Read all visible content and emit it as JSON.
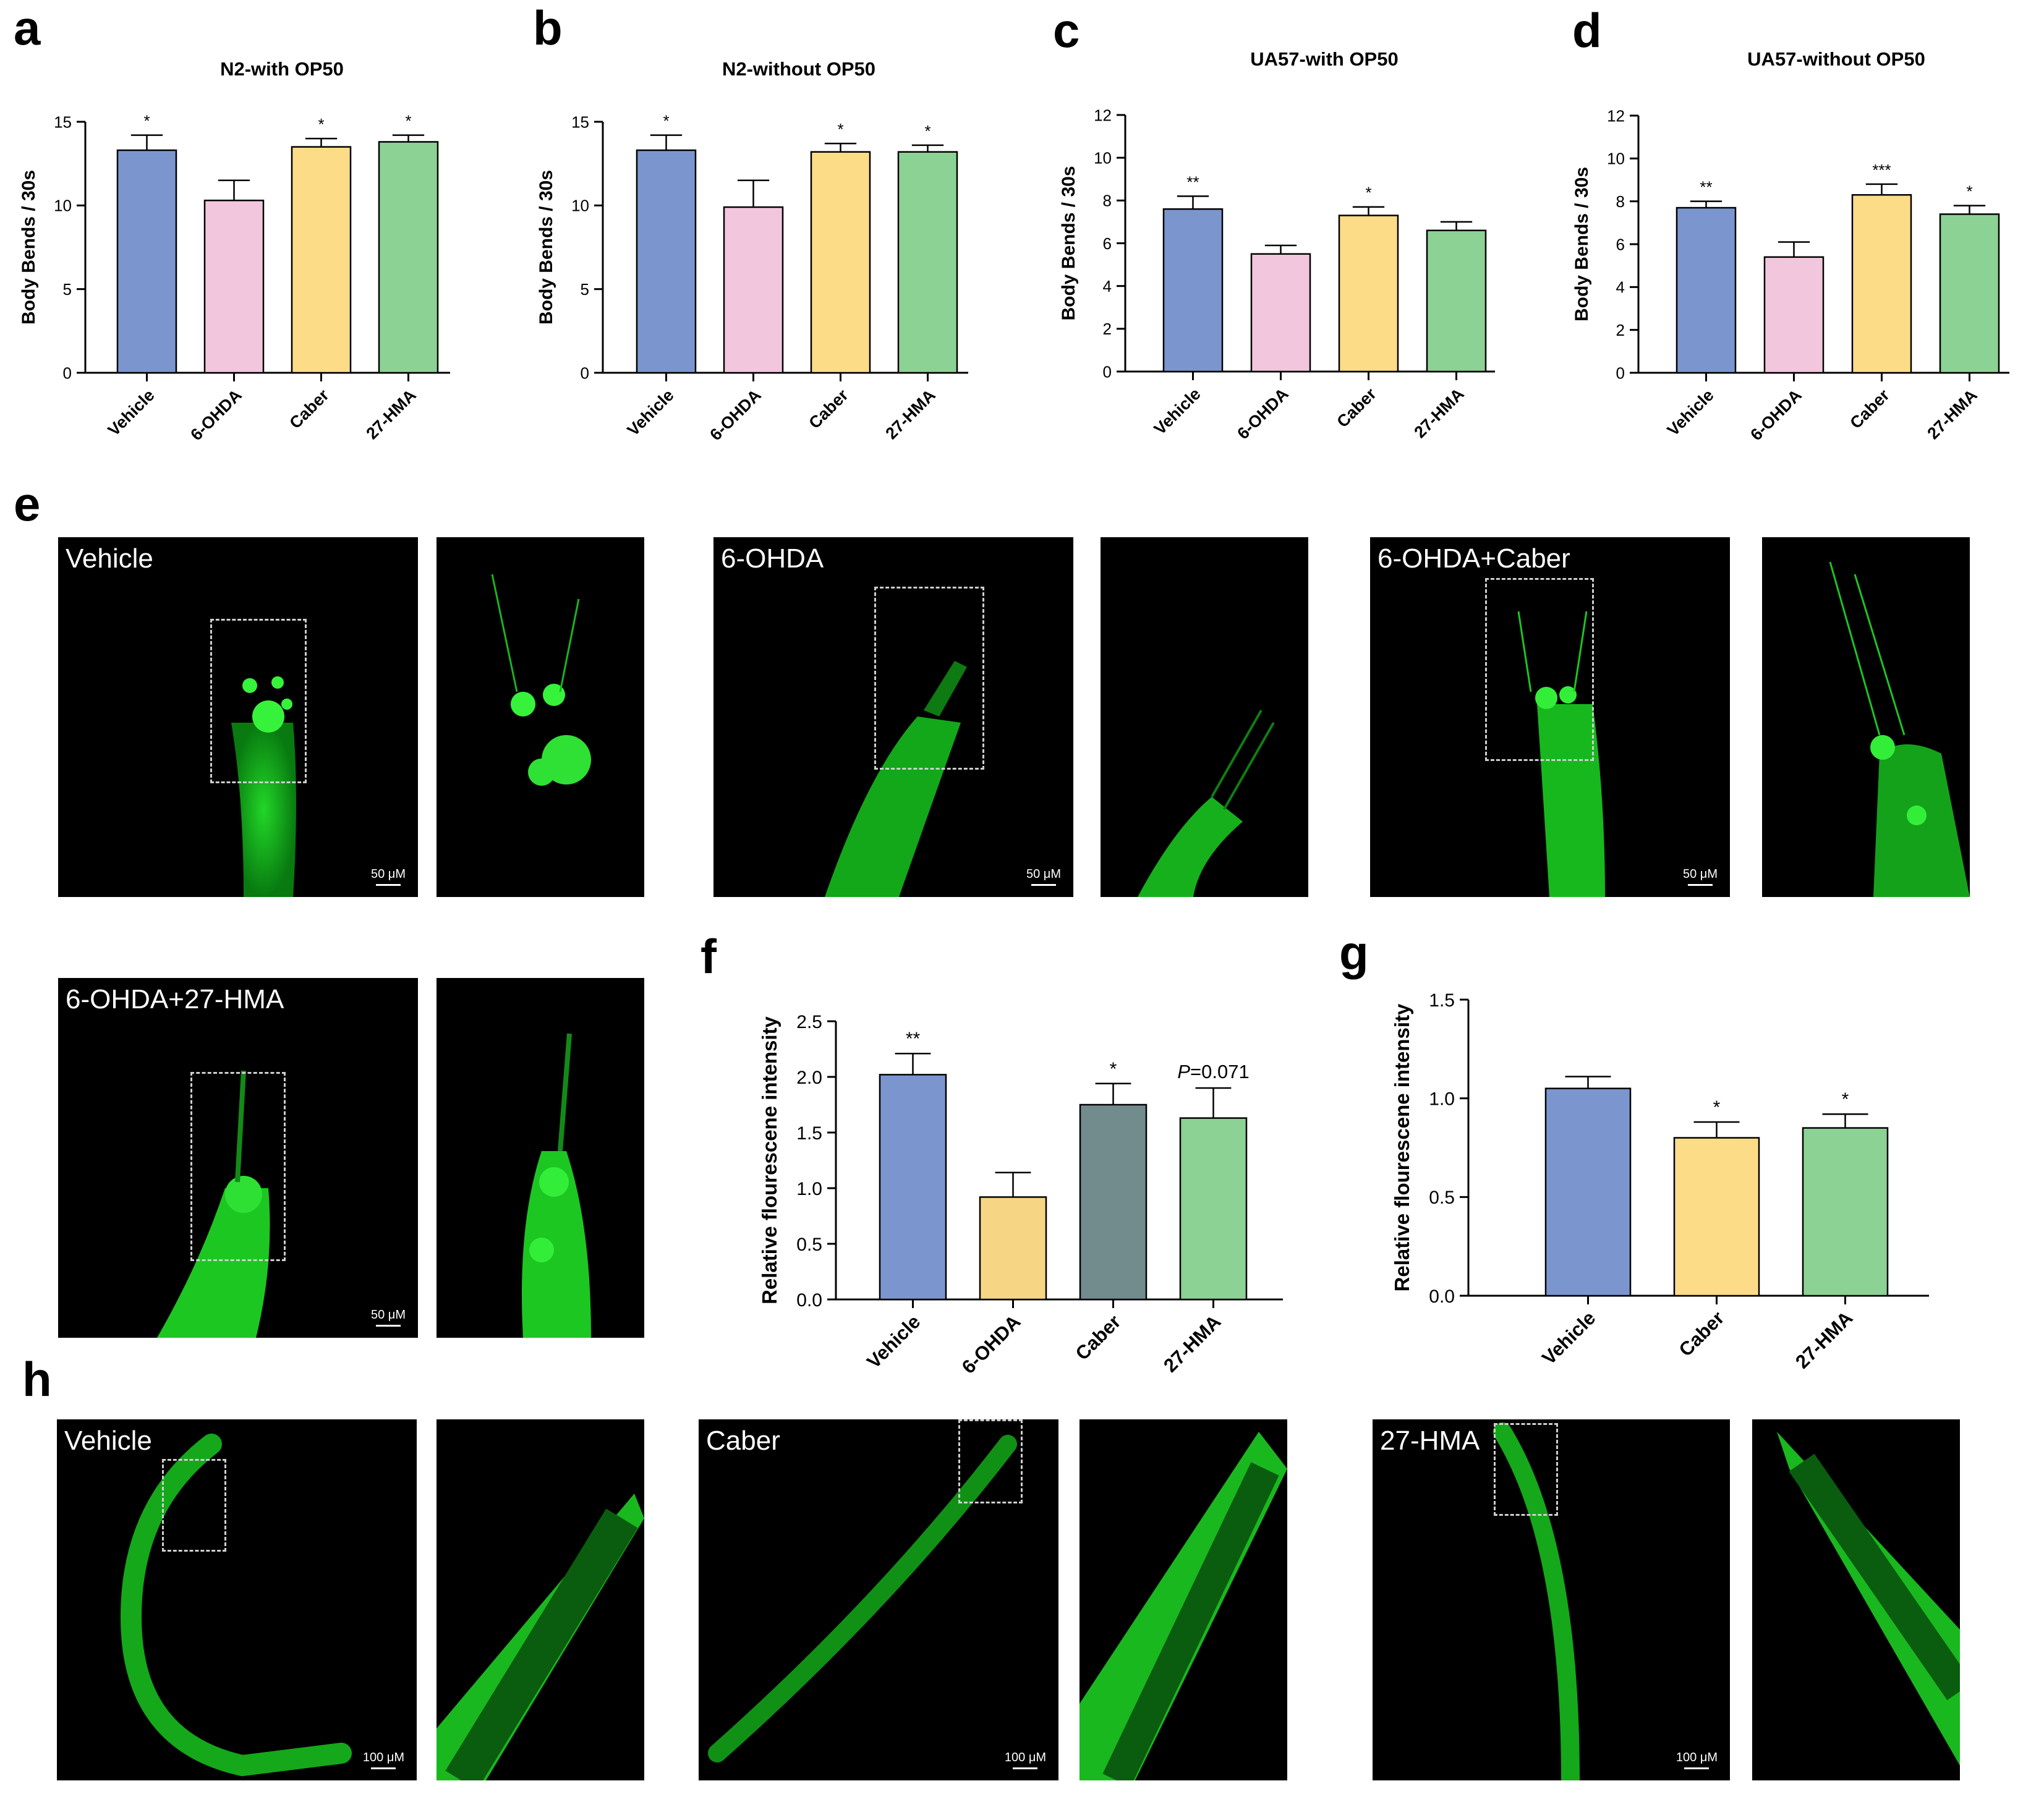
{
  "panels": {
    "a": "a",
    "b": "b",
    "c": "c",
    "d": "d",
    "e": "e",
    "f": "f",
    "g": "g",
    "h": "h"
  },
  "colors": {
    "vehicle": "#7b96cf",
    "ohda": "#f2c6dd",
    "caber": "#fddc87",
    "hma": "#8bd294",
    "caber_f": "#f6d685",
    "caber_slate": "#728b8d",
    "green": "#21c526"
  },
  "chart_data": [
    {
      "id": "a",
      "type": "bar",
      "title": "N2-with OP50",
      "ylabel": "Body Bends / 30s",
      "categories": [
        "Vehicle",
        "6-OHDA",
        "Caber",
        "27-HMA"
      ],
      "values": [
        13.3,
        10.3,
        13.5,
        13.8
      ],
      "errors": [
        0.9,
        1.2,
        0.5,
        0.4
      ],
      "annotations": [
        "*",
        "",
        "*",
        "*"
      ],
      "ylim": [
        0,
        15
      ],
      "yticks": [
        "0",
        "5",
        "10",
        "15"
      ],
      "ytick_values": [
        0,
        5,
        10,
        15
      ],
      "colors": [
        "vehicle",
        "ohda",
        "caber",
        "hma"
      ]
    },
    {
      "id": "b",
      "type": "bar",
      "title": "N2-without OP50",
      "ylabel": "Body Bends / 30s",
      "categories": [
        "Vehicle",
        "6-OHDA",
        "Caber",
        "27-HMA"
      ],
      "values": [
        13.3,
        9.9,
        13.2,
        13.2
      ],
      "errors": [
        0.9,
        1.6,
        0.5,
        0.4
      ],
      "annotations": [
        "*",
        "",
        "*",
        "*"
      ],
      "ylim": [
        0,
        15
      ],
      "yticks": [
        "0",
        "5",
        "10",
        "15"
      ],
      "ytick_values": [
        0,
        5,
        10,
        15
      ],
      "colors": [
        "vehicle",
        "ohda",
        "caber",
        "hma"
      ]
    },
    {
      "id": "c",
      "type": "bar",
      "title": "UA57-with OP50",
      "ylabel": "Body Bends / 30s",
      "categories": [
        "Vehicle",
        "6-OHDA",
        "Caber",
        "27-HMA"
      ],
      "values": [
        7.6,
        5.5,
        7.3,
        6.6
      ],
      "errors": [
        0.6,
        0.4,
        0.4,
        0.4
      ],
      "annotations": [
        "**",
        "",
        "*",
        ""
      ],
      "ylim": [
        0,
        12
      ],
      "yticks": [
        "0",
        "2",
        "4",
        "6",
        "8",
        "10",
        "12"
      ],
      "ytick_values": [
        0,
        2,
        4,
        6,
        8,
        10,
        12
      ],
      "colors": [
        "vehicle",
        "ohda",
        "caber",
        "hma"
      ]
    },
    {
      "id": "d",
      "type": "bar",
      "title": "UA57-without OP50",
      "ylabel": "Body Bends / 30s",
      "categories": [
        "Vehicle",
        "6-OHDA",
        "Caber",
        "27-HMA"
      ],
      "values": [
        7.7,
        5.4,
        8.3,
        7.4
      ],
      "errors": [
        0.3,
        0.7,
        0.5,
        0.4
      ],
      "annotations": [
        "**",
        "",
        "***",
        "*"
      ],
      "ylim": [
        0,
        12
      ],
      "yticks": [
        "0",
        "2",
        "4",
        "6",
        "8",
        "10",
        "12"
      ],
      "ytick_values": [
        0,
        2,
        4,
        6,
        8,
        10,
        12
      ],
      "colors": [
        "vehicle",
        "ohda",
        "caber",
        "hma"
      ]
    },
    {
      "id": "f",
      "type": "bar",
      "title": "",
      "ylabel": "Relative flourescene intensity",
      "categories": [
        "Vehicle",
        "6-OHDA",
        "Caber",
        "27-HMA"
      ],
      "values": [
        2.02,
        0.92,
        1.75,
        1.63
      ],
      "errors": [
        0.19,
        0.22,
        0.19,
        0.27
      ],
      "annotations": [
        "**",
        "",
        "*",
        ""
      ],
      "pvalue_note": {
        "prefix": "P",
        "text": "=0.071"
      },
      "ylim": [
        0,
        2.5
      ],
      "yticks": [
        "0.0",
        "0.5",
        "1.0",
        "1.5",
        "2.0",
        "2.5"
      ],
      "ytick_values": [
        0,
        0.5,
        1,
        1.5,
        2,
        2.5
      ],
      "colors": [
        "vehicle",
        "caber_f",
        "caber_slate",
        "hma"
      ]
    },
    {
      "id": "g",
      "type": "bar",
      "title": "",
      "ylabel": "Relative flourescene intensity",
      "categories": [
        "Vehicle",
        "Caber",
        "27-HMA"
      ],
      "values": [
        1.05,
        0.8,
        0.85
      ],
      "errors": [
        0.06,
        0.08,
        0.07
      ],
      "annotations": [
        "",
        "*",
        "*"
      ],
      "ylim": [
        0,
        1.5
      ],
      "yticks": [
        "0.0",
        "0.5",
        "1.0",
        "1.5"
      ],
      "ytick_values": [
        0,
        0.5,
        1,
        1.5
      ],
      "colors": [
        "vehicle",
        "caber",
        "hma"
      ]
    }
  ],
  "micrographs": {
    "e": [
      {
        "label": "Vehicle",
        "scale": "50 μM"
      },
      {
        "label": "6-OHDA",
        "scale": "50 μM"
      },
      {
        "label": "6-OHDA+Caber",
        "scale": "50 μM"
      },
      {
        "label": "6-OHDA+27-HMA",
        "scale": "50 μM"
      }
    ],
    "h": [
      {
        "label": "Vehicle",
        "scale": "100 μM"
      },
      {
        "label": "Caber",
        "scale": "100 μM"
      },
      {
        "label": "27-HMA",
        "scale": "100 μM"
      }
    ]
  }
}
